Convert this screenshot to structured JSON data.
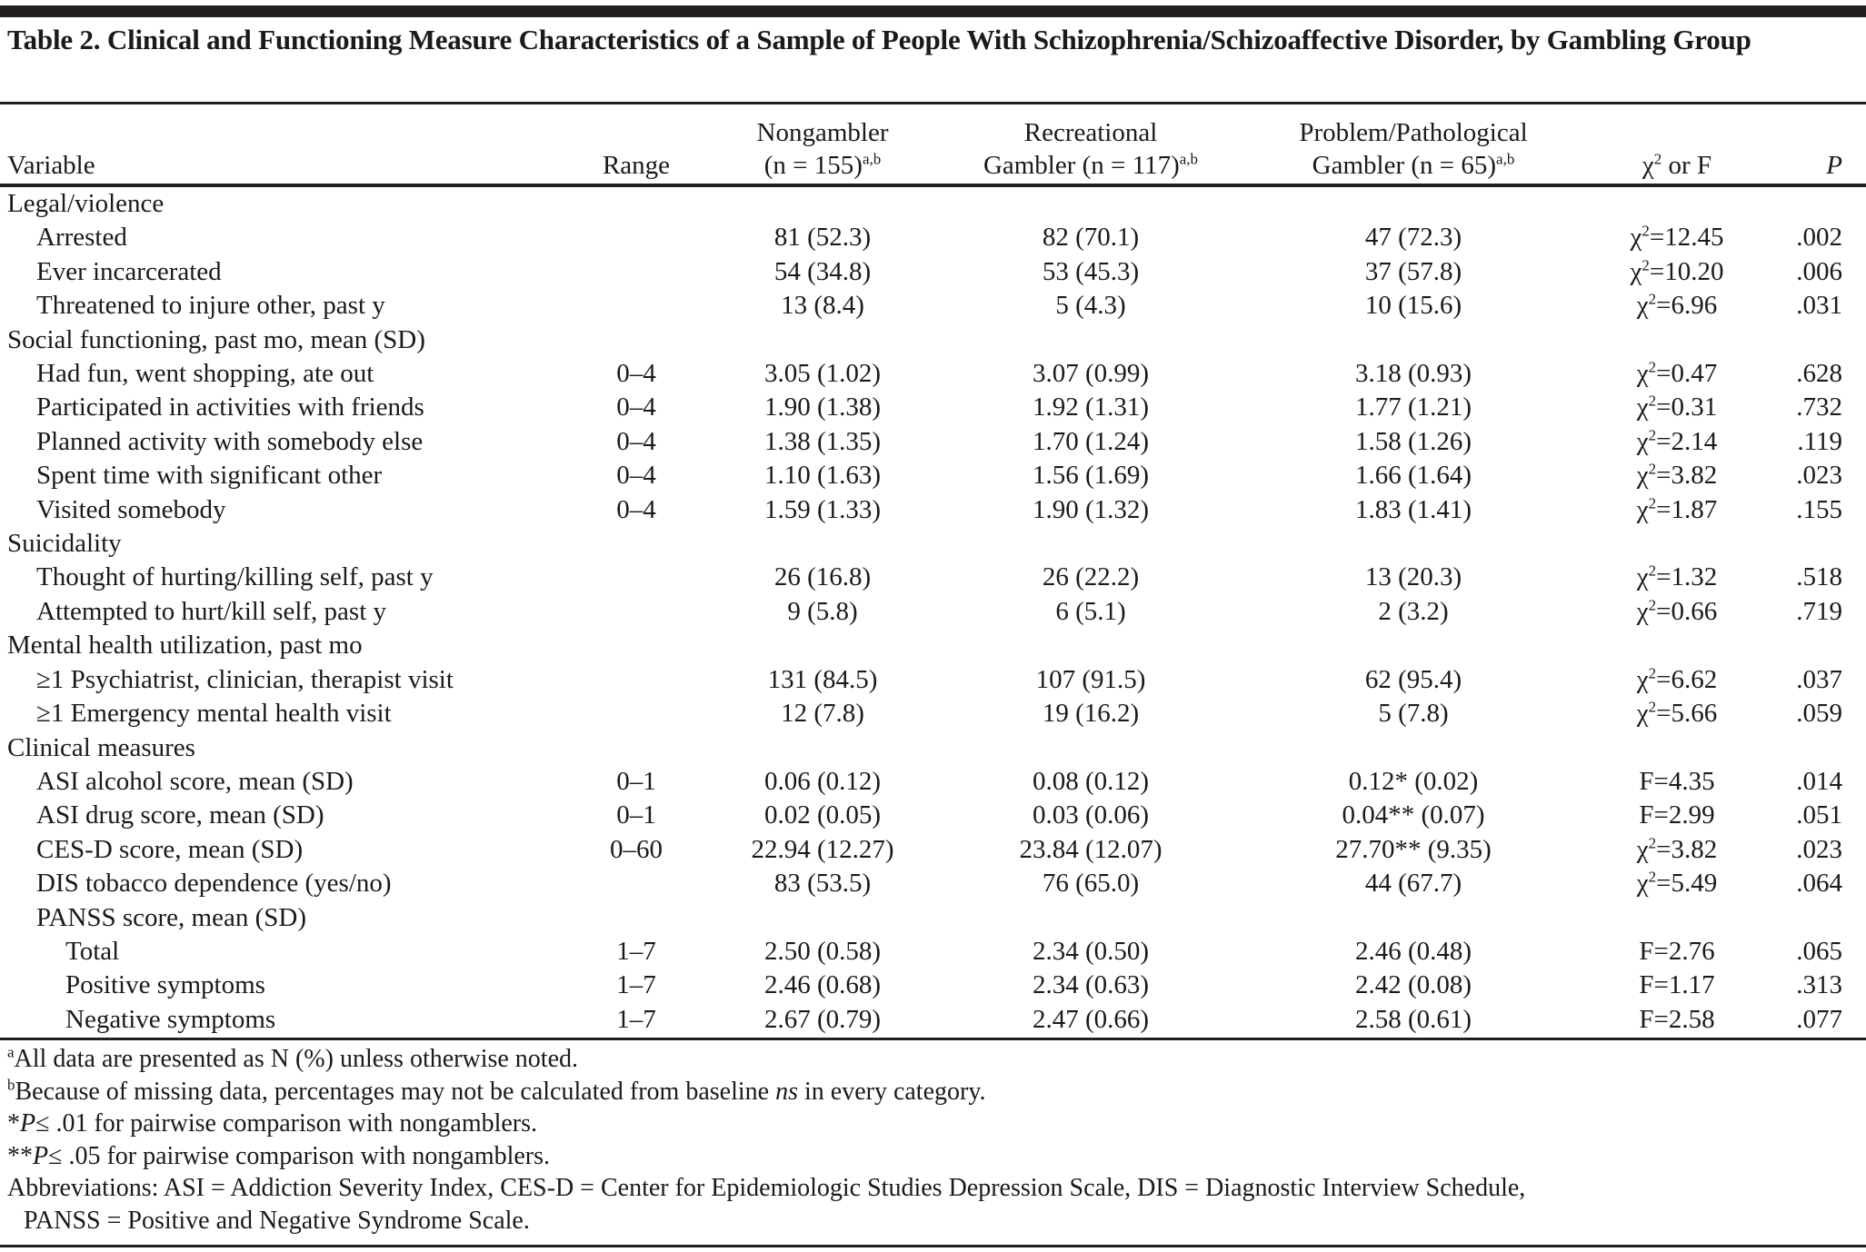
{
  "title": "Table 2. Clinical and Functioning Measure Characteristics of a Sample of People With Schizophrenia/Schizoaffective Disorder, by Gambling Group",
  "header": {
    "variable": "Variable",
    "range": "Range",
    "nongambler_line1": "Nongambler",
    "nongambler_line2": "(n = 155)",
    "recreational_line1": "Recreational",
    "recreational_line2": "Gambler (n = 117)",
    "problem_line1": "Problem/Pathological",
    "problem_line2": "Gambler (n = 65)",
    "sup": "a,b",
    "stat_symbol": "χ",
    "stat_sup": "2",
    "stat_rest": " or F",
    "p": "P"
  },
  "rows": [
    {
      "label": "Legal/violence",
      "level": 0
    },
    {
      "label": "Arrested",
      "level": 1,
      "range": "",
      "ng": "81 (52.3)",
      "rec": "82 (70.1)",
      "prob": "47 (72.3)",
      "sym": "χ",
      "sup": "2",
      "val": "=12.45",
      "p": ".002"
    },
    {
      "label": "Ever incarcerated",
      "level": 1,
      "range": "",
      "ng": "54 (34.8)",
      "rec": "53 (45.3)",
      "prob": "37 (57.8)",
      "sym": "χ",
      "sup": "2",
      "val": "=10.20",
      "p": ".006"
    },
    {
      "label": "Threatened to injure other, past y",
      "level": 1,
      "range": "",
      "ng": "13 (8.4)",
      "rec": "5 (4.3)",
      "prob": "10 (15.6)",
      "sym": "χ",
      "sup": "2",
      "val": "=6.96",
      "p": ".031"
    },
    {
      "label": "Social functioning, past mo, mean (SD)",
      "level": 0
    },
    {
      "label": "Had fun, went shopping, ate out",
      "level": 1,
      "range": "0–4",
      "ng": "3.05 (1.02)",
      "rec": "3.07 (0.99)",
      "prob": "3.18 (0.93)",
      "sym": "χ",
      "sup": "2",
      "val": "=0.47",
      "p": ".628"
    },
    {
      "label": "Participated in activities with friends",
      "level": 1,
      "range": "0–4",
      "ng": "1.90 (1.38)",
      "rec": "1.92 (1.31)",
      "prob": "1.77 (1.21)",
      "sym": "χ",
      "sup": "2",
      "val": "=0.31",
      "p": ".732"
    },
    {
      "label": "Planned activity with somebody else",
      "level": 1,
      "range": "0–4",
      "ng": "1.38 (1.35)",
      "rec": "1.70 (1.24)",
      "prob": "1.58 (1.26)",
      "sym": "χ",
      "sup": "2",
      "val": "=2.14",
      "p": ".119"
    },
    {
      "label": "Spent time with significant other",
      "level": 1,
      "range": "0–4",
      "ng": "1.10 (1.63)",
      "rec": "1.56 (1.69)",
      "prob": "1.66 (1.64)",
      "sym": "χ",
      "sup": "2",
      "val": "=3.82",
      "p": ".023"
    },
    {
      "label": "Visited somebody",
      "level": 1,
      "range": "0–4",
      "ng": "1.59 (1.33)",
      "rec": "1.90 (1.32)",
      "prob": "1.83 (1.41)",
      "sym": "χ",
      "sup": "2",
      "val": "=1.87",
      "p": ".155"
    },
    {
      "label": "Suicidality",
      "level": 0
    },
    {
      "label": "Thought of hurting/killing self, past y",
      "level": 1,
      "range": "",
      "ng": "26 (16.8)",
      "rec": "26 (22.2)",
      "prob": "13 (20.3)",
      "sym": "χ",
      "sup": "2",
      "val": "=1.32",
      "p": ".518"
    },
    {
      "label": "Attempted to hurt/kill self, past y",
      "level": 1,
      "range": "",
      "ng": "9 (5.8)",
      "rec": "6 (5.1)",
      "prob": "2 (3.2)",
      "sym": "χ",
      "sup": "2",
      "val": "=0.66",
      "p": ".719"
    },
    {
      "label": "Mental health utilization, past mo",
      "level": 0
    },
    {
      "label": "≥1 Psychiatrist, clinician, therapist visit",
      "level": 1,
      "range": "",
      "ng": "131 (84.5)",
      "rec": "107 (91.5)",
      "prob": "62 (95.4)",
      "sym": "χ",
      "sup": "2",
      "val": "=6.62",
      "p": ".037"
    },
    {
      "label": "≥1 Emergency mental health visit",
      "level": 1,
      "range": "",
      "ng": "12 (7.8)",
      "rec": "19 (16.2)",
      "prob": "5 (7.8)",
      "sym": "χ",
      "sup": "2",
      "val": "=5.66",
      "p": ".059"
    },
    {
      "label": "Clinical measures",
      "level": 0
    },
    {
      "label": "ASI alcohol score, mean (SD)",
      "level": 1,
      "range": "0–1",
      "ng": "0.06 (0.12)",
      "rec": "0.08 (0.12)",
      "prob": "0.12* (0.02)",
      "sym": "",
      "sup": "",
      "val": "F=4.35",
      "p": ".014"
    },
    {
      "label": "ASI drug score, mean (SD)",
      "level": 1,
      "range": "0–1",
      "ng": "0.02 (0.05)",
      "rec": "0.03 (0.06)",
      "prob": "0.04** (0.07)",
      "sym": "",
      "sup": "",
      "val": "F=2.99",
      "p": ".051"
    },
    {
      "label": "CES-D score, mean (SD)",
      "level": 1,
      "range": "0–60",
      "ng": "22.94 (12.27)",
      "rec": "23.84 (12.07)",
      "prob": "27.70** (9.35)",
      "sym": "χ",
      "sup": "2",
      "val": "=3.82",
      "p": ".023"
    },
    {
      "label": "DIS tobacco dependence (yes/no)",
      "level": 1,
      "range": "",
      "ng": "83 (53.5)",
      "rec": "76 (65.0)",
      "prob": "44 (67.7)",
      "sym": "χ",
      "sup": "2",
      "val": "=5.49",
      "p": ".064"
    },
    {
      "label": "PANSS score, mean (SD)",
      "level": 1
    },
    {
      "label": "Total",
      "level": 2,
      "range": "1–7",
      "ng": "2.50 (0.58)",
      "rec": "2.34 (0.50)",
      "prob": "2.46 (0.48)",
      "sym": "",
      "sup": "",
      "val": "F=2.76",
      "p": ".065"
    },
    {
      "label": "Positive symptoms",
      "level": 2,
      "range": "1–7",
      "ng": "2.46 (0.68)",
      "rec": "2.34 (0.63)",
      "prob": "2.42 (0.08)",
      "sym": "",
      "sup": "",
      "val": "F=1.17",
      "p": ".313"
    },
    {
      "label": "Negative symptoms",
      "level": 2,
      "range": "1–7",
      "ng": "2.67 (0.79)",
      "rec": "2.47 (0.66)",
      "prob": "2.58 (0.61)",
      "sym": "",
      "sup": "",
      "val": "F=2.58",
      "p": ".077"
    }
  ],
  "footnotes": {
    "a_mark": "a",
    "a_text": "All data are presented as N (%) unless otherwise noted.",
    "b_mark": "b",
    "b_text_1": "Because of missing data, percentages may not be calculated from baseline ",
    "b_text_italic": "ns",
    "b_text_2": " in every category.",
    "star1_prefix": "*",
    "star1_p": "P",
    "star1_text": "≤ .01 for pairwise comparison with nongamblers.",
    "star2_prefix": "**",
    "star2_p": "P",
    "star2_text": "≤ .05 for pairwise comparison with nongamblers.",
    "abbrev_1": "Abbreviations: ASI = Addiction Severity Index, CES-D = Center for Epidemiologic Studies Depression Scale, DIS = Diagnostic Interview Schedule,",
    "abbrev_2": "PANSS = Positive and Negative Syndrome Scale."
  }
}
